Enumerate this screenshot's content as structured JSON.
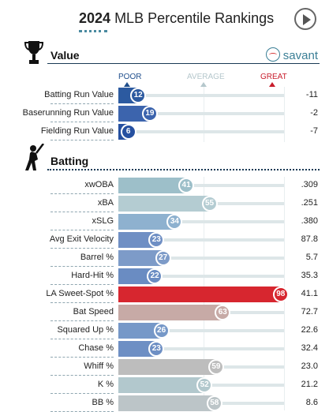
{
  "header": {
    "year": "2024",
    "title": "MLB Percentile Rankings",
    "play_icon": "play-icon"
  },
  "value_section": {
    "title": "Value",
    "icon": "trophy-icon",
    "brand": "savant",
    "brand_icon": "baseball-icon",
    "scale": {
      "poor": "POOR",
      "average": "AVERAGE",
      "great": "GREAT"
    },
    "rows": [
      {
        "name": "Batting Run Value",
        "percentile": 12,
        "value": "-11",
        "color": "#2c5aa0"
      },
      {
        "name": "Baserunning Run Value",
        "percentile": 19,
        "value": "-2",
        "color": "#3c64ad"
      },
      {
        "name": "Fielding Run Value",
        "percentile": 6,
        "value": "-7",
        "color": "#2650a0"
      }
    ]
  },
  "batting_section": {
    "title": "Batting",
    "icon": "batter-icon",
    "rows": [
      {
        "name": "xwOBA",
        "percentile": 41,
        "value": ".309",
        "color": "#9dbfc9"
      },
      {
        "name": "xBA",
        "percentile": 55,
        "value": ".251",
        "color": "#b4ccd2"
      },
      {
        "name": "xSLG",
        "percentile": 34,
        "value": ".380",
        "color": "#8eb1cf"
      },
      {
        "name": "Avg Exit Velocity",
        "percentile": 23,
        "value": "87.8",
        "color": "#6f8fc4"
      },
      {
        "name": "Barrel %",
        "percentile": 27,
        "value": "5.7",
        "color": "#7d9bc8"
      },
      {
        "name": "Hard-Hit %",
        "percentile": 22,
        "value": "35.3",
        "color": "#6a8cc2"
      },
      {
        "name": "LA Sweet-Spot %",
        "percentile": 98,
        "value": "41.1",
        "color": "#d7262f"
      },
      {
        "name": "Bat Speed",
        "percentile": 63,
        "value": "72.7",
        "color": "#c7aaa6"
      },
      {
        "name": "Squared Up %",
        "percentile": 26,
        "value": "22.6",
        "color": "#7698c8"
      },
      {
        "name": "Chase %",
        "percentile": 23,
        "value": "32.4",
        "color": "#6e8fc4"
      },
      {
        "name": "Whiff %",
        "percentile": 59,
        "value": "23.0",
        "color": "#bdbdbd"
      },
      {
        "name": "K %",
        "percentile": 52,
        "value": "21.2",
        "color": "#b2c8cd"
      },
      {
        "name": "BB %",
        "percentile": 58,
        "value": "8.6",
        "color": "#bcc5c8"
      }
    ]
  }
}
